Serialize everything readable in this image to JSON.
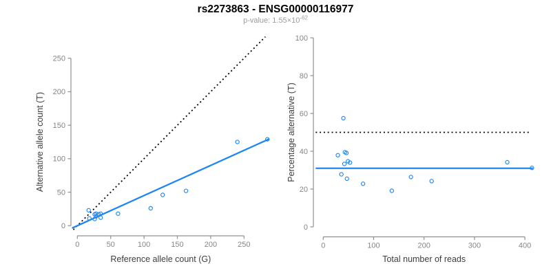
{
  "header": {
    "title": "rs2273863 - ENSG00000116977",
    "pvalue_prefix": "p-value: 1.55×10",
    "pvalue_exponent": "-62"
  },
  "colors": {
    "accent_blue": "#1E86F2",
    "dotted_black": "#000000",
    "axis_gray": "#8f8f8f",
    "tick_label_gray": "#858585",
    "axis_title_gray": "#3d3d3d",
    "subtitle_gray": "#9b9b9b"
  },
  "chart_data": [
    {
      "type": "scatter",
      "panel": "left",
      "title": "",
      "xlabel": "Reference allele count (G)",
      "ylabel": "Alternative allele count (T)",
      "xticks": [
        0,
        50,
        100,
        150,
        200,
        250
      ],
      "yticks": [
        0,
        50,
        100,
        150,
        200,
        250
      ],
      "xlim": [
        -11,
        288
      ],
      "ylim": [
        -6,
        281
      ],
      "grid": false,
      "legend": "none",
      "point_style": "open-circle",
      "points": [
        [
          17,
          23
        ],
        [
          18,
          11
        ],
        [
          26,
          17
        ],
        [
          28,
          18
        ],
        [
          28,
          14
        ],
        [
          32,
          17
        ],
        [
          35,
          18
        ],
        [
          26,
          10
        ],
        [
          35,
          12
        ],
        [
          61,
          18
        ],
        [
          110,
          26
        ],
        [
          128,
          46
        ],
        [
          163,
          52
        ],
        [
          240,
          125
        ],
        [
          285,
          129
        ]
      ],
      "lines": [
        {
          "name": "identity-line",
          "style": "dotted",
          "color": "#000000",
          "x1": -6,
          "y1": -6,
          "x2": 282,
          "y2": 282,
          "meaning": "y = x (50% alternative)"
        },
        {
          "name": "fit-line",
          "style": "solid",
          "color": "#1E86F2",
          "x1": -8,
          "y1": -3.6,
          "x2": 288,
          "y2": 129.6,
          "slope": 0.45,
          "meaning": "fitted allelic ratio y = 0.45x"
        }
      ]
    },
    {
      "type": "scatter",
      "panel": "right",
      "title": "",
      "xlabel": "Total number of reads",
      "ylabel": "Percentage alternative (T)",
      "xticks": [
        0,
        100,
        200,
        300,
        400
      ],
      "yticks": [
        0,
        20,
        40,
        60,
        80,
        100
      ],
      "xlim": [
        -18,
        420
      ],
      "ylim": [
        0,
        100
      ],
      "grid": false,
      "legend": "none",
      "point_style": "open-circle",
      "points": [
        [
          40,
          57.5
        ],
        [
          29,
          37.9
        ],
        [
          43,
          39.5
        ],
        [
          46,
          39.1
        ],
        [
          42,
          33.3
        ],
        [
          49,
          34.7
        ],
        [
          53,
          34.0
        ],
        [
          36,
          27.8
        ],
        [
          47,
          25.5
        ],
        [
          79,
          22.8
        ],
        [
          136,
          19.1
        ],
        [
          174,
          26.4
        ],
        [
          215,
          24.2
        ],
        [
          365,
          34.2
        ],
        [
          414,
          31.2
        ]
      ],
      "lines": [
        {
          "name": "fifty-percent-line",
          "style": "dotted",
          "color": "#000000",
          "x1": -15,
          "y1": 50,
          "x2": 409,
          "y2": 50,
          "meaning": "50% reference line"
        },
        {
          "name": "mean-ratio-line",
          "style": "solid",
          "color": "#1E86F2",
          "x1": -15,
          "y1": 31,
          "x2": 416,
          "y2": 31,
          "meaning": "mean alternative percentage ~31%"
        }
      ]
    }
  ]
}
